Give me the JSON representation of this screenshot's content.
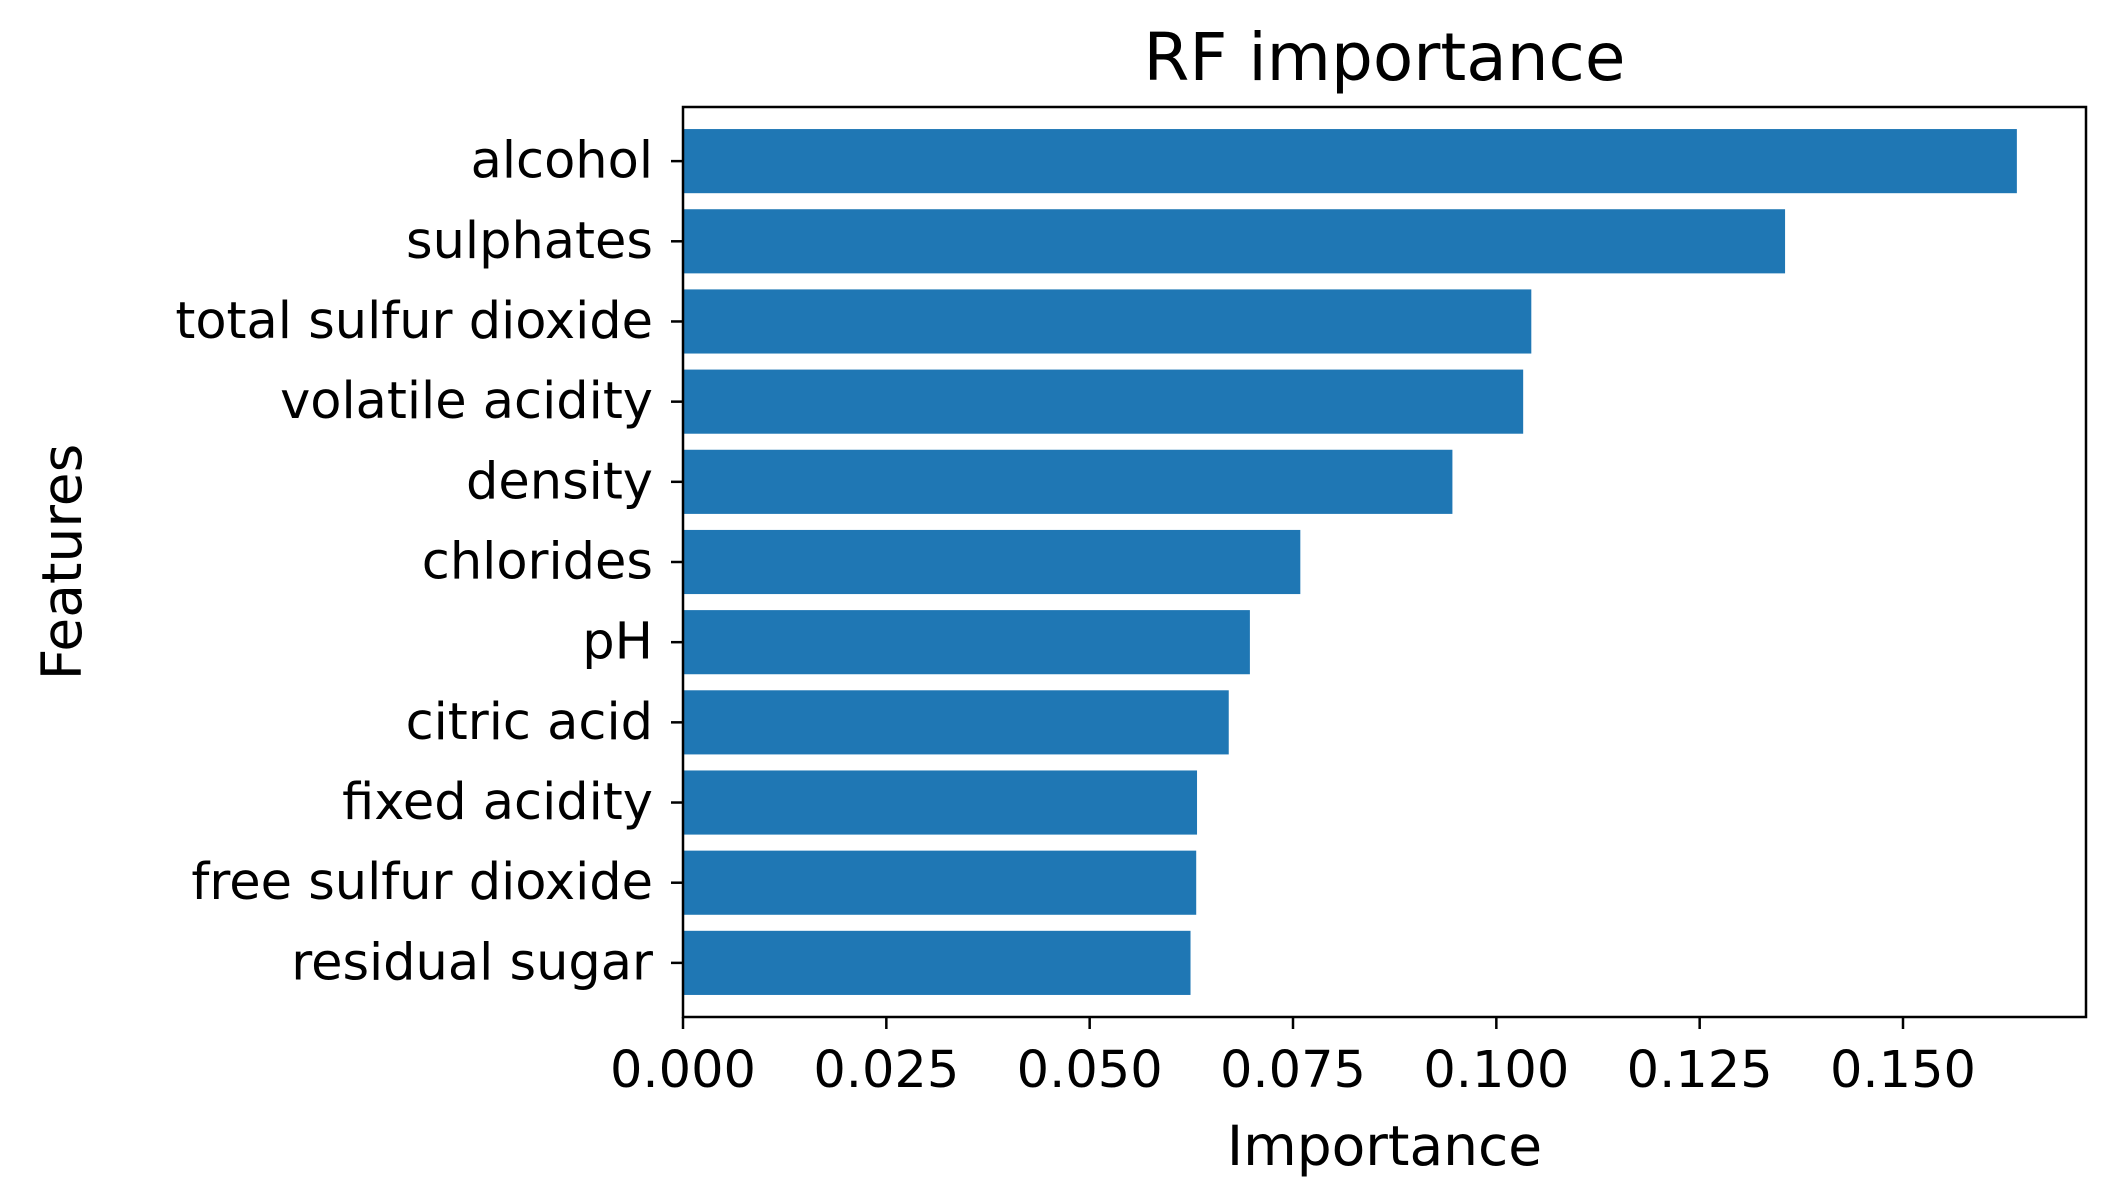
{
  "chart_data": {
    "type": "bar",
    "orientation": "horizontal",
    "title": "RF importance",
    "xlabel": "Importance",
    "ylabel": "Features",
    "categories": [
      "alcohol",
      "sulphates",
      "total sulfur dioxide",
      "volatile acidity",
      "density",
      "chlorides",
      "pH",
      "citric acid",
      "fixed acidity",
      "free sulfur dioxide",
      "residual sugar"
    ],
    "values": [
      0.164,
      0.1355,
      0.1043,
      0.1033,
      0.0946,
      0.0759,
      0.0697,
      0.0671,
      0.0632,
      0.0631,
      0.0624
    ],
    "xlim": [
      0,
      0.1725
    ],
    "xticks": [
      0.0,
      0.025,
      0.05,
      0.075,
      0.1,
      0.125,
      0.15
    ],
    "xtick_labels": [
      "0.000",
      "0.025",
      "0.050",
      "0.075",
      "0.100",
      "0.125",
      "0.150"
    ],
    "grid": false,
    "legend": "none",
    "bar_color": "#1f77b4"
  }
}
